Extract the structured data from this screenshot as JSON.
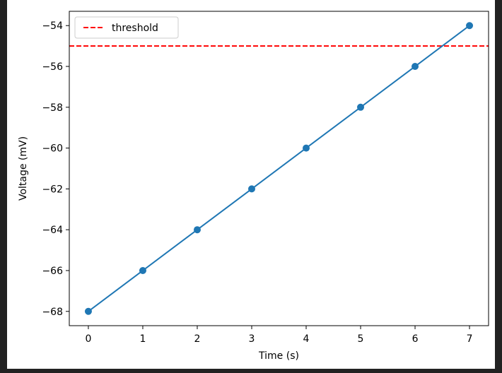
{
  "chart_data": {
    "type": "line",
    "title": "",
    "xlabel": "Time (s)",
    "ylabel": "Voltage (mV)",
    "xlim": [
      -0.35,
      7.35
    ],
    "ylim": [
      -68.7,
      -53.3
    ],
    "xticks": [
      0,
      1,
      2,
      3,
      4,
      5,
      6,
      7
    ],
    "xtick_labels": [
      "0",
      "1",
      "2",
      "3",
      "4",
      "5",
      "6",
      "7"
    ],
    "yticks": [
      -68,
      -66,
      -64,
      -62,
      -60,
      -58,
      -56,
      -54
    ],
    "ytick_labels": [
      "−68",
      "−66",
      "−64",
      "−62",
      "−60",
      "−58",
      "−56",
      "−54"
    ],
    "grid": false,
    "legend": {
      "placement": "upper-left",
      "entries": [
        "threshold"
      ]
    },
    "series": [
      {
        "x": [
          0,
          1,
          2,
          3,
          4,
          5,
          6,
          7
        ],
        "values": [
          -68,
          -66,
          -64,
          -62,
          -60,
          -58,
          -56,
          -54
        ],
        "color": "#1f77b4",
        "marker": "circle",
        "line": "solid"
      }
    ],
    "hlines": [
      {
        "name": "threshold",
        "y": -55,
        "color": "#ff0000",
        "line": "dashed"
      }
    ]
  }
}
